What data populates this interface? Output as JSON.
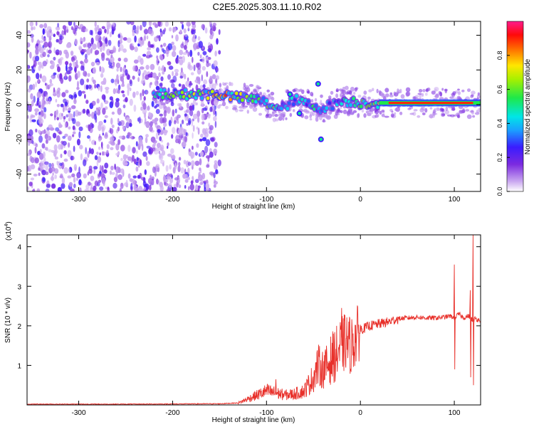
{
  "page": {
    "title": "C2E5.2025.303.11.10.R02"
  },
  "chart_data": [
    {
      "id": "spectrogram",
      "type": "heatmap",
      "xlabel": "Height of straight line (km)",
      "ylabel": "Frequency (Hz)",
      "xlim": [
        -355,
        128
      ],
      "ylim": [
        -50,
        48
      ],
      "xticks": [
        -300,
        -200,
        -100,
        0,
        100
      ],
      "yticks": [
        -40,
        -20,
        0,
        20,
        40
      ],
      "noise_region_x": [
        -355,
        -150
      ],
      "signal_ridge": {
        "x": [
          -220,
          -180,
          -150,
          -130,
          -110,
          -95,
          -85,
          -70,
          -60,
          -50,
          -40,
          -30,
          -20,
          -10,
          0,
          20,
          40,
          60,
          80,
          100,
          120,
          128
        ],
        "y": [
          6,
          6,
          6,
          4,
          3,
          0,
          -3,
          3,
          1,
          -1,
          -2,
          0,
          2,
          2,
          1,
          1,
          1,
          1,
          1,
          1,
          1,
          1
        ],
        "amplitude": [
          0.45,
          0.5,
          0.7,
          0.55,
          0.45,
          0.5,
          0.4,
          0.4,
          0.35,
          0.45,
          0.35,
          0.3,
          0.35,
          0.45,
          0.5,
          0.7,
          0.85,
          0.9,
          0.9,
          0.85,
          0.8,
          0.8
        ]
      },
      "colorbar": {
        "label": "Normalized spectral amplitude",
        "range": [
          0,
          1
        ],
        "ticks": [
          "0.0",
          "0.2",
          "0.4",
          "0.6",
          "0.8"
        ],
        "colormap": "rainbow (white → purple → blue → cyan → green → yellow → red → magenta)"
      }
    },
    {
      "id": "snr",
      "type": "line",
      "xlabel": "Height of straight line (km)",
      "ylabel": "SNR (10 * v/v)",
      "y_multiplier": "(x10",
      "y_multiplier_exp": "4",
      "y_multiplier_close": ")",
      "xlim": [
        -355,
        128
      ],
      "ylim": [
        0,
        4.3
      ],
      "xticks": [
        -300,
        -200,
        -100,
        0,
        100
      ],
      "yticks": [
        1,
        2,
        3,
        4
      ],
      "series": [
        {
          "color": "#e8302a",
          "x": [
            -355,
            -250,
            -150,
            -130,
            -120,
            -110,
            -100,
            -90,
            -80,
            -70,
            -60,
            -50,
            -45,
            -40,
            -35,
            -30,
            -25,
            -20,
            -15,
            -10,
            -5,
            0,
            10,
            20,
            30,
            40,
            50,
            60,
            70,
            80,
            90,
            95,
            100,
            105,
            110,
            115,
            118,
            120,
            122,
            125,
            128
          ],
          "y": [
            0.02,
            0.02,
            0.03,
            0.05,
            0.15,
            0.25,
            0.35,
            0.3,
            0.25,
            0.28,
            0.35,
            0.7,
            1.0,
            0.9,
            1.0,
            1.2,
            1.3,
            1.5,
            1.6,
            1.5,
            1.7,
            1.9,
            2.0,
            2.05,
            2.1,
            2.18,
            2.2,
            2.22,
            2.2,
            2.2,
            2.22,
            2.25,
            2.2,
            2.3,
            2.2,
            2.25,
            2.2,
            2.1,
            2.2,
            2.15,
            2.15
          ],
          "spikes": [
            {
              "x": -20,
              "peak": 2.45
            },
            {
              "x": -90,
              "peak": 0.65
            },
            {
              "x": 100,
              "peak": 3.55,
              "low": 0.9
            },
            {
              "x": 120,
              "peak": 4.3,
              "low": 0.5
            },
            {
              "x": 117,
              "peak": 2.9,
              "low": 0.7
            }
          ]
        }
      ]
    }
  ]
}
